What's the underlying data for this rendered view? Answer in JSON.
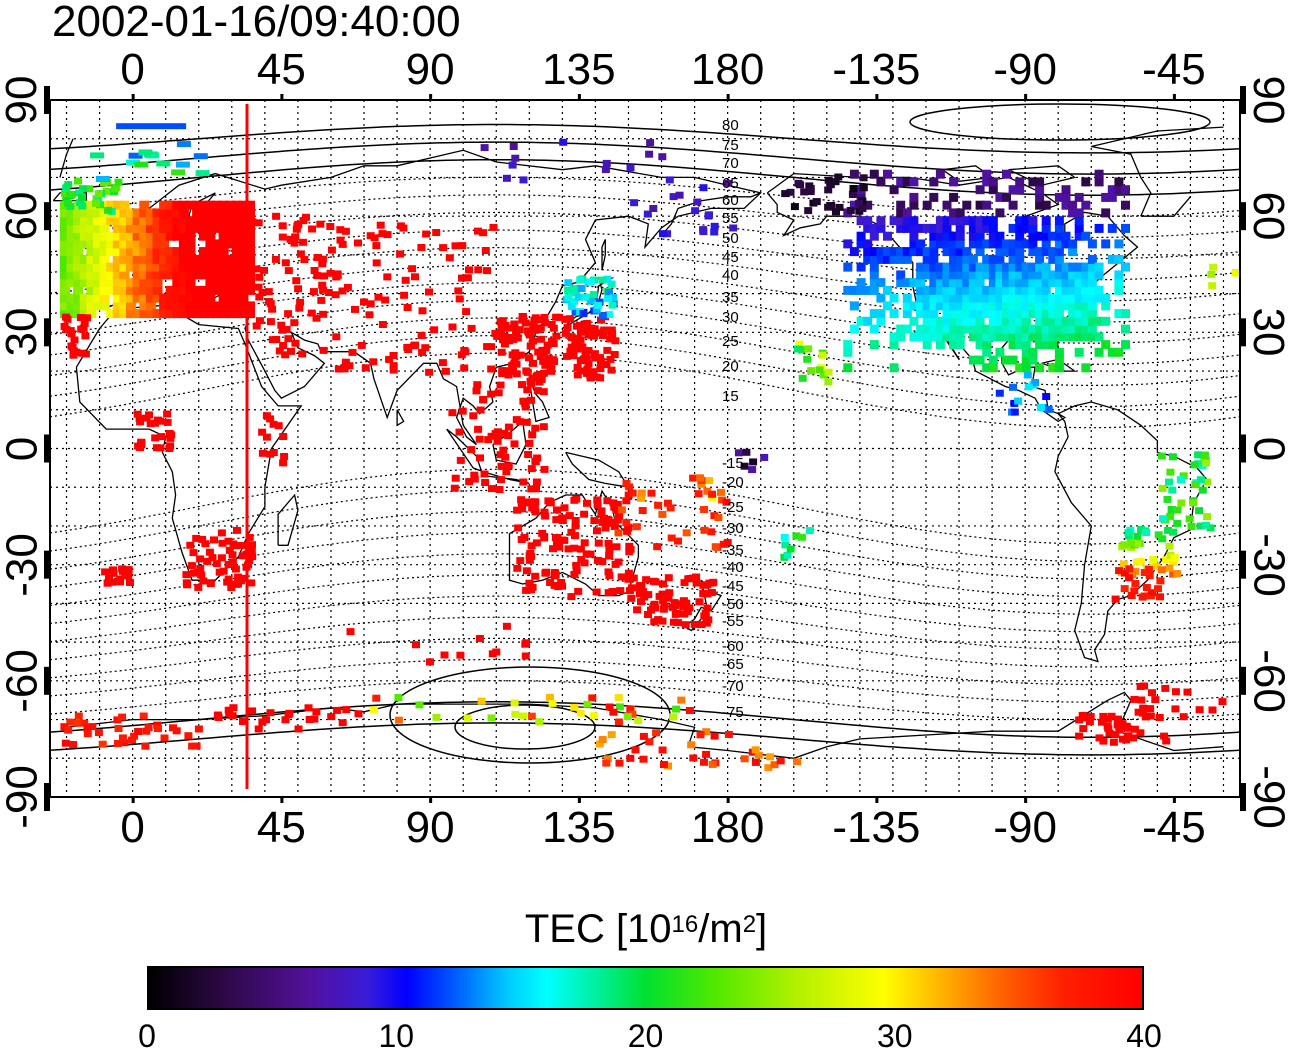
{
  "title": "2002-01-16/09:40:00",
  "lon_ticks": [
    "0",
    "45",
    "90",
    "135",
    "180",
    "-135",
    "-90",
    "-45"
  ],
  "lat_ticks": [
    "90",
    "60",
    "30",
    "0",
    "-30",
    "-60",
    "-90"
  ],
  "colorbar": {
    "label_main": "TEC  [10",
    "label_exp1": "16",
    "label_mid": "/m",
    "label_exp2": "2",
    "label_end": "]",
    "ticks": [
      "0",
      "10",
      "20",
      "30",
      "40"
    ],
    "min": 0,
    "max": 40
  },
  "map": {
    "longitude_range": [
      -25,
      335
    ],
    "latitude_range": [
      -90,
      90
    ],
    "grid": "dotted every 10 degrees",
    "marker_longitude": 35,
    "marker_color": "#ff0000"
  },
  "mlat_labels_north": [
    "80",
    "75",
    "70",
    "65",
    "60",
    "55",
    "50",
    "45",
    "40",
    "35",
    "30",
    "25",
    "20",
    "15"
  ],
  "mlat_labels_south": [
    "-15",
    "-20",
    "-25",
    "-30",
    "-35",
    "-40",
    "-45",
    "-50",
    "-55",
    "-60",
    "-65",
    "-70",
    "-75"
  ]
}
